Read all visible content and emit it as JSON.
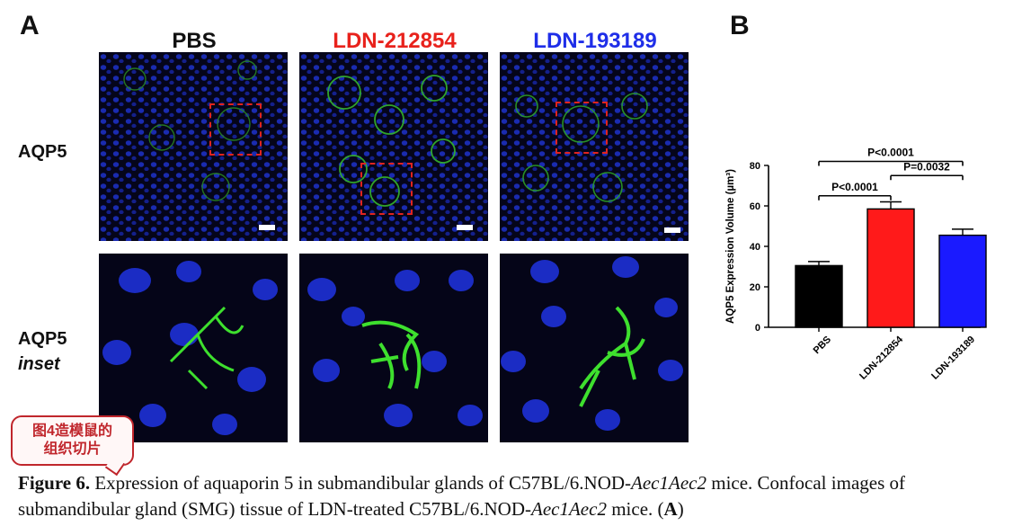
{
  "figure": {
    "panel_a_letter": "A",
    "panel_b_letter": "B",
    "columns": [
      {
        "label": "PBS",
        "color": "#111111"
      },
      {
        "label": "LDN-212854",
        "color": "#e8221c"
      },
      {
        "label": "LDN-193189",
        "color": "#1f2ee8"
      }
    ],
    "rows": {
      "top_label": "AQP5",
      "bottom_label_line1": "AQP5",
      "bottom_label_line2": "inset"
    },
    "sticker": {
      "line1": "图4造模鼠的",
      "line2": "组织切片"
    },
    "caption": {
      "figure_no": "Figure 6.",
      "text_part1": " Expression of aquaporin 5 in submandibular glands of C57BL/6.NOD-",
      "italic1": "Aec1Aec2",
      "text_part2": " mice. Confocal images of submandibular gland (SMG) tissue of LDN-treated C57BL/6.NOD-",
      "italic2": "Aec1Aec2",
      "text_part3": " mice. (",
      "bold_a": "A",
      "text_part4": ")"
    }
  },
  "chart_data": {
    "type": "bar",
    "categories": [
      "PBS",
      "LDN-212854",
      "LDN-193189"
    ],
    "values": [
      30.5,
      58.5,
      45.5
    ],
    "errors": [
      2,
      3.5,
      3
    ],
    "colors": [
      "#000000",
      "#ff1a1a",
      "#1a1aff"
    ],
    "ylabel": "AQP5 Expression Volume (µm³)",
    "ylim": [
      0,
      80
    ],
    "yticks": [
      0,
      20,
      40,
      60,
      80
    ],
    "annotations": [
      {
        "label": "P<0.0001",
        "from": "PBS",
        "to": "LDN-212854"
      },
      {
        "label": "P<0.0001",
        "from": "PBS",
        "to": "LDN-193189"
      },
      {
        "label": "P=0.0032",
        "from": "LDN-212854",
        "to": "LDN-193189"
      }
    ]
  }
}
